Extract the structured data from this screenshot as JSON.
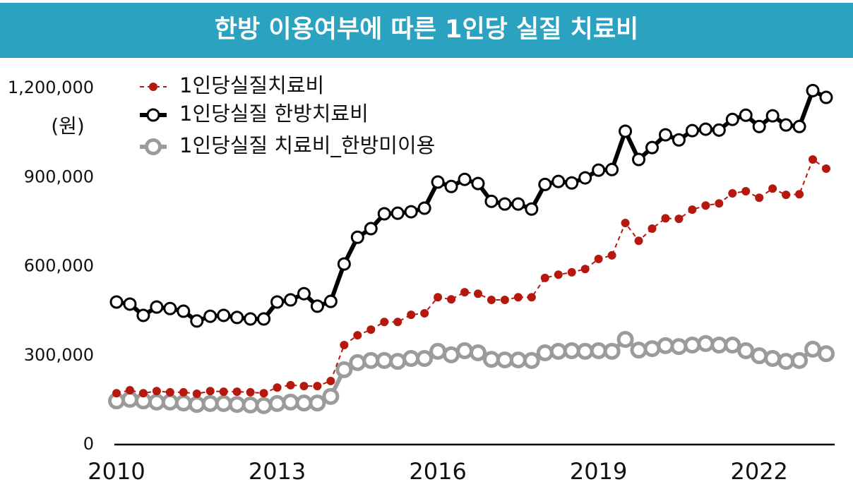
{
  "chart_data": {
    "type": "line",
    "title": "한방 이용여부에 따른 1인당 실질 치료비",
    "y_unit": "(원)",
    "x": [
      2010,
      2010.25,
      2010.5,
      2010.75,
      2011,
      2011.25,
      2011.5,
      2011.75,
      2012,
      2012.25,
      2012.5,
      2012.75,
      2013,
      2013.25,
      2013.5,
      2013.75,
      2014,
      2014.25,
      2014.5,
      2014.75,
      2015,
      2015.25,
      2015.5,
      2015.75,
      2016,
      2016.25,
      2016.5,
      2016.75,
      2017,
      2017.25,
      2017.5,
      2017.75,
      2018,
      2018.25,
      2018.5,
      2018.75,
      2019,
      2019.25,
      2019.5,
      2019.75,
      2020,
      2020.25,
      2020.5,
      2020.75,
      2021,
      2021.25,
      2021.5,
      2021.75,
      2022,
      2022.25,
      2022.5,
      2022.75,
      2023,
      2023.25
    ],
    "series": [
      {
        "name": "1인당실질치료비",
        "color": "#b5180f",
        "values": [
          173000,
          183000,
          173000,
          180000,
          176000,
          176000,
          171000,
          180000,
          178000,
          178000,
          176000,
          173000,
          192000,
          200000,
          197000,
          197000,
          214000,
          335000,
          368000,
          387000,
          413000,
          413000,
          437000,
          442000,
          496000,
          489000,
          513000,
          508000,
          487000,
          487000,
          496000,
          496000,
          561000,
          572000,
          580000,
          591000,
          625000,
          637000,
          746000,
          686000,
          727000,
          762000,
          760000,
          791000,
          805000,
          812000,
          846000,
          853000,
          831000,
          862000,
          841000,
          843000,
          960000,
          929000
        ]
      },
      {
        "name": "1인당실질 한방치료비",
        "color": "#000000",
        "values": [
          480000,
          473000,
          435000,
          463000,
          458000,
          449000,
          416000,
          432000,
          435000,
          428000,
          423000,
          423000,
          480000,
          487000,
          508000,
          466000,
          482000,
          608000,
          698000,
          727000,
          777000,
          779000,
          784000,
          796000,
          884000,
          869000,
          893000,
          879000,
          819000,
          810000,
          810000,
          793000,
          876000,
          886000,
          881000,
          898000,
          924000,
          926000,
          1055000,
          960000,
          1000000,
          1043000,
          1026000,
          1057000,
          1062000,
          1059000,
          1095000,
          1109000,
          1071000,
          1107000,
          1076000,
          1071000,
          1192000,
          1169000
        ]
      },
      {
        "name": "1인당실질 치료비_한방미이용",
        "color": "#9b9b9b",
        "values": [
          147000,
          152000,
          147000,
          143000,
          143000,
          140000,
          135000,
          138000,
          138000,
          135000,
          133000,
          131000,
          138000,
          143000,
          140000,
          140000,
          162000,
          252000,
          276000,
          283000,
          283000,
          280000,
          290000,
          290000,
          314000,
          302000,
          316000,
          309000,
          287000,
          285000,
          285000,
          283000,
          309000,
          314000,
          316000,
          314000,
          316000,
          314000,
          354000,
          318000,
          323000,
          333000,
          330000,
          335000,
          340000,
          335000,
          335000,
          316000,
          299000,
          290000,
          280000,
          283000,
          321000,
          306000
        ]
      }
    ],
    "xlim": [
      2010,
      2023.25
    ],
    "xticks": [
      2010,
      2013,
      2016,
      2019,
      2022
    ],
    "ylim": [
      0,
      1200000
    ],
    "yticks": [
      0,
      {
        "value": 300000,
        "label": "300,000"
      },
      {
        "value": 600000,
        "label": "600,000"
      },
      {
        "value": 900000,
        "label": "900,000"
      },
      {
        "value": 1200000,
        "label": "1,200,000"
      }
    ],
    "title_color": "#2ba2bf",
    "legend": "upper left"
  }
}
